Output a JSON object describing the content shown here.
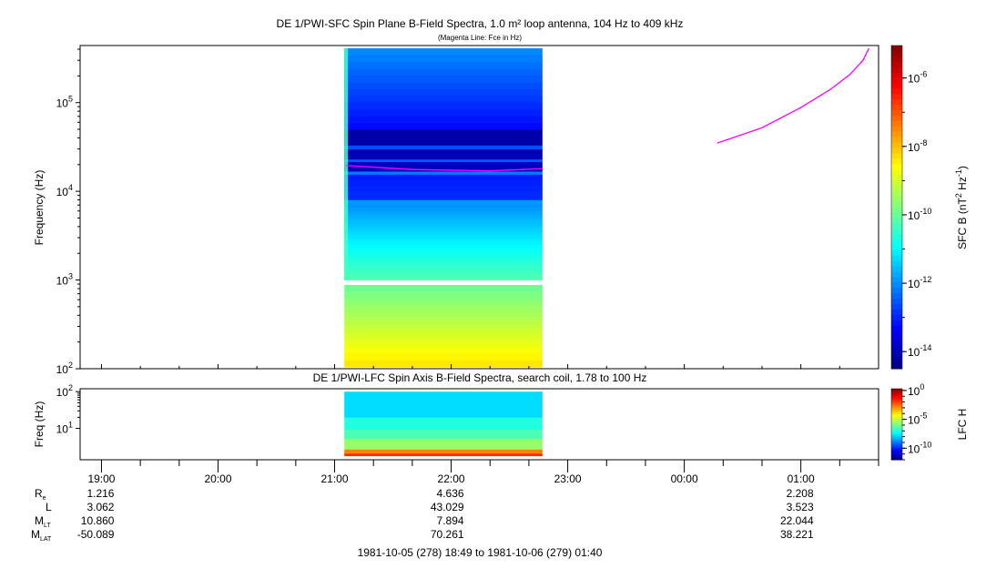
{
  "chart_data": [
    {
      "type": "heatmap",
      "title": "DE 1/PWI-SFC  Spin Plane B-Field Spectra, 1.0 m² loop antenna, 104 Hz to 409 kHz",
      "subtitle": "(Magenta Line: Fce in Hz)",
      "ylabel": "Frequency (Hz)",
      "yscale": "log",
      "ylim": [
        100,
        440000
      ],
      "yticks": [
        {
          "v": 100,
          "e": "2"
        },
        {
          "v": 1000,
          "e": "3"
        },
        {
          "v": 10000,
          "e": "4"
        },
        {
          "v": 100000,
          "e": "5"
        }
      ],
      "colorbar": {
        "label": "SFC B (nT",
        "label_sup1": "2",
        "label_mid": " Hz",
        "label_sup2": "-1",
        "label_end": ")",
        "scale": "log",
        "range_log10": [
          -14.5,
          -5.05
        ],
        "ticks": [
          "-6",
          "-8",
          "-10",
          "-12",
          "-14"
        ],
        "colormap": "jet"
      },
      "data_time_range": [
        "21:05",
        "22:47"
      ],
      "bands": [
        {
          "f": [
            104,
            880
          ],
          "log10_value": [
            -8.3,
            -10.0
          ]
        },
        {
          "f": [
            1000,
            2500
          ],
          "log10_value": [
            -10.2,
            -11.0
          ]
        },
        {
          "f": [
            2500,
            7200
          ],
          "log10_value": [
            -11.0,
            -12.0
          ]
        },
        {
          "f": [
            7200,
            8000
          ],
          "log10_value": [
            -11.9,
            -11.9
          ]
        },
        {
          "f": [
            8000,
            15500
          ],
          "log10_value": [
            -12.9,
            -13.1
          ]
        },
        {
          "f": [
            15500,
            16800
          ],
          "log10_value": [
            -12.2,
            -12.2
          ]
        },
        {
          "f": [
            16800,
            21500
          ],
          "log10_value": [
            -13.9,
            -13.9
          ]
        },
        {
          "f": [
            21500,
            23000
          ],
          "log10_value": [
            -12.5,
            -12.5
          ]
        },
        {
          "f": [
            23000,
            30000
          ],
          "log10_value": [
            -14.0,
            -14.0
          ]
        },
        {
          "f": [
            30000,
            33000
          ],
          "log10_value": [
            -12.6,
            -12.6
          ]
        },
        {
          "f": [
            33000,
            50000
          ],
          "log10_value": [
            -14.1,
            -14.1
          ]
        },
        {
          "f": [
            50000,
            409000
          ],
          "log10_value": [
            -13.3,
            -12.0
          ]
        }
      ],
      "fce_line": {
        "color": "#ff00ff",
        "segments": [
          [
            [
              "21:06",
              19500
            ],
            [
              "21:40",
              17600
            ],
            [
              "22:20",
              17000
            ],
            [
              "22:47",
              18000
            ]
          ],
          [
            [
              "00:17",
              35000
            ],
            [
              "00:40",
              52000
            ],
            [
              "01:00",
              88000
            ],
            [
              "01:15",
              140000
            ],
            [
              "01:25",
              205000
            ],
            [
              "01:32",
              300000
            ],
            [
              "01:35",
              409000
            ]
          ]
        ]
      }
    },
    {
      "type": "heatmap",
      "title": "DE 1/PWI-LFC  Spin Axis B-Field Spectra, search coil, 1.78 to 100 Hz",
      "ylabel": "Freq (Hz)",
      "yscale": "log",
      "ylim": [
        1.4,
        120
      ],
      "yticks": [
        {
          "v": 10,
          "e": "1"
        },
        {
          "v": 100,
          "e": "2"
        }
      ],
      "colorbar": {
        "label": "LFC H",
        "scale": "log",
        "range_log10": [
          -12,
          0.3
        ],
        "ticks": [
          "0",
          "-5",
          "-10"
        ],
        "colormap": "jet"
      },
      "data_time_range": [
        "21:05",
        "22:47"
      ],
      "bands": [
        {
          "f": [
            1.78,
            2.1
          ],
          "log10_value": [
            -1.8,
            -1.8
          ]
        },
        {
          "f": [
            2.1,
            2.7
          ],
          "log10_value": [
            -2.8,
            -2.8
          ]
        },
        {
          "f": [
            2.7,
            5.2
          ],
          "log10_value": [
            -5.6,
            -5.6
          ]
        },
        {
          "f": [
            5.2,
            9.5
          ],
          "log10_value": [
            -6.5,
            -6.5
          ]
        },
        {
          "f": [
            9.5,
            20
          ],
          "log10_value": [
            -7.0,
            -7.0
          ]
        },
        {
          "f": [
            20,
            100
          ],
          "log10_value": [
            -7.8,
            -7.8
          ]
        }
      ]
    }
  ],
  "time_axis": {
    "start": "18:49",
    "end": "01:40",
    "labels": [
      "19:00",
      "20:00",
      "21:00",
      "22:00",
      "23:00",
      "00:00",
      "01:00"
    ],
    "footer": "1981-10-05 (278) 18:49 to 1981-10-06 (279) 01:40"
  },
  "ephemeris": {
    "rows": [
      {
        "label": "R",
        "sub": "e",
        "values": [
          "1.216",
          "4.636",
          "2.208"
        ]
      },
      {
        "label": "L",
        "sub": "",
        "values": [
          "3.062",
          "43.029",
          "3.523"
        ]
      },
      {
        "label": "M",
        "sub": "LT",
        "values": [
          "10.860",
          "7.894",
          "22.044"
        ]
      },
      {
        "label": "M",
        "sub": "LAT",
        "values": [
          "-50.089",
          "70.261",
          "38.221"
        ]
      }
    ],
    "value_times": [
      "19:00",
      "22:00",
      "01:00"
    ]
  }
}
